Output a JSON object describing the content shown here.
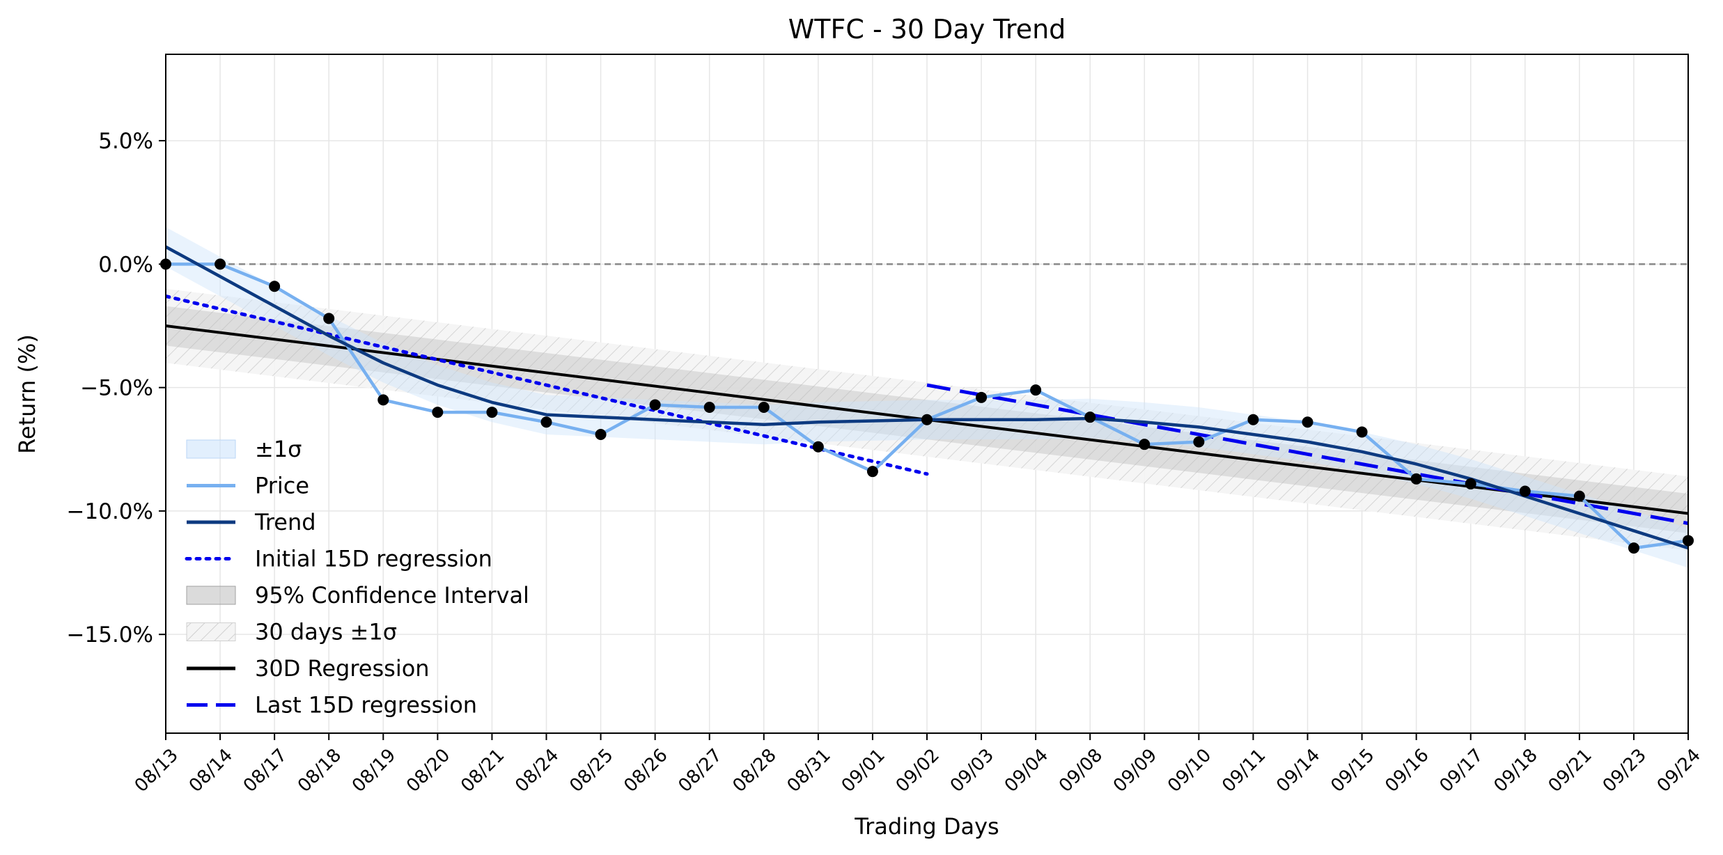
{
  "chart_data": {
    "type": "line",
    "title": "WTFC - 30 Day Trend",
    "xlabel": "Trading Days",
    "ylabel": "Return (%)",
    "ylim": [
      -19.0,
      8.5
    ],
    "yticks": [
      5.0,
      0.0,
      -5.0,
      -10.0,
      -15.0
    ],
    "ytick_labels": [
      "5.0%",
      "0.0%",
      "−5.0%",
      "−10.0%",
      "−15.0%"
    ],
    "grid": true,
    "legend_position": "lower-left",
    "categories": [
      "08/13",
      "08/14",
      "08/17",
      "08/18",
      "08/19",
      "08/20",
      "08/21",
      "08/24",
      "08/25",
      "08/26",
      "08/27",
      "08/28",
      "08/31",
      "09/01",
      "09/02",
      "09/03",
      "09/04",
      "09/08",
      "09/09",
      "09/10",
      "09/11",
      "09/14",
      "09/15",
      "09/16",
      "09/17",
      "09/18",
      "09/21",
      "09/23",
      "09/24"
    ],
    "price": [
      0.0,
      0.0,
      -0.9,
      -2.2,
      -5.5,
      -6.0,
      -6.0,
      -6.4,
      -6.9,
      -5.7,
      -5.8,
      -5.8,
      -7.4,
      -8.4,
      -6.3,
      -5.4,
      -5.1,
      -6.2,
      -7.3,
      -7.2,
      -6.3,
      -6.4,
      -6.8,
      -8.7,
      -8.9,
      -9.2,
      -9.4,
      -11.5,
      -11.2
    ],
    "trend": [
      0.7,
      -0.5,
      -1.7,
      -2.9,
      -4.0,
      -4.9,
      -5.6,
      -6.1,
      -6.2,
      -6.3,
      -6.4,
      -6.5,
      -6.4,
      -6.35,
      -6.3,
      -6.3,
      -6.3,
      -6.25,
      -6.4,
      -6.6,
      -6.9,
      -7.2,
      -7.6,
      -8.1,
      -8.7,
      -9.4,
      -10.1,
      -10.8,
      -11.5
    ],
    "sigma_band": 0.8,
    "annotations": {
      "zero_line": 0.0,
      "regression_30d": {
        "start": -2.5,
        "end": -10.1
      },
      "regression_initial_15d": {
        "start_index": 0,
        "end_index": 14,
        "start": -1.3,
        "end": -8.5
      },
      "regression_last_15d": {
        "start_index": 14,
        "end_index": 28,
        "start": -4.9,
        "end": -10.5
      },
      "confidence_95_halfwidth": 0.8,
      "sigma_30d_halfwidth": 1.5
    },
    "colors": {
      "price": "#77b0f0",
      "trend": "#0d3a80",
      "sigma_fill": "#cfe4fb",
      "initial_regression": "#0000ee",
      "last_regression": "#0000ee",
      "regression_30d": "#000000",
      "confidence": "#b8b8b8",
      "zero_line": "#888888",
      "markers": "#000000"
    },
    "legend": [
      {
        "label": "±1σ",
        "kind": "patch-sigma"
      },
      {
        "label": "Price",
        "kind": "line-price"
      },
      {
        "label": "Trend",
        "kind": "line-trend"
      },
      {
        "label": "Initial 15D regression",
        "kind": "line-dotted"
      },
      {
        "label": "95% Confidence Interval",
        "kind": "patch-ci"
      },
      {
        "label": "30 days ±1σ",
        "kind": "patch-hatch"
      },
      {
        "label": "30D Regression",
        "kind": "line-black"
      },
      {
        "label": "Last 15D regression",
        "kind": "line-dashed"
      }
    ]
  }
}
